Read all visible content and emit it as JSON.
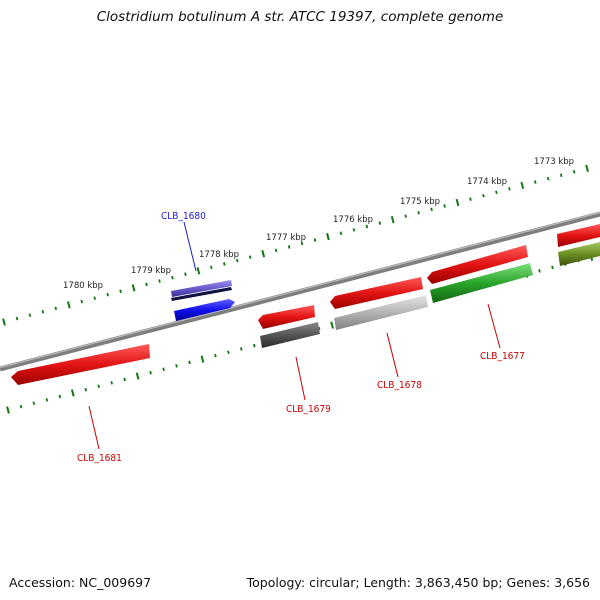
{
  "title": "Clostridium botulinum A str. ATCC 19397, complete genome",
  "footer": {
    "accession": "Accession: NC_009697",
    "summary": "Topology: circular; Length: 3,863,450 bp; Genes: 3,656"
  },
  "scale_labels": [
    "1773 kbp",
    "1774 kbp",
    "1775 kbp",
    "1776 kbp",
    "1777 kbp",
    "1778 kbp",
    "1779 kbp",
    "1780 kbp"
  ],
  "gene_labels": [
    {
      "text": "CLB_1680",
      "color": "#1a1acc"
    },
    {
      "text": "CLB_1681",
      "color": "#cc0000"
    },
    {
      "text": "CLB_1679",
      "color": "#cc0000"
    },
    {
      "text": "CLB_1678",
      "color": "#cc0000"
    },
    {
      "text": "CLB_1677",
      "color": "#cc0000"
    }
  ],
  "colors": {
    "backbone": "#808080",
    "tick": "#117711",
    "red_gene": "#e01818",
    "blue_gene": "#1010e0",
    "green_gene": "#22aa22",
    "olive_gene": "#6b8e23",
    "gray_dark": "#555555",
    "gray_light": "#b0b0b0",
    "purple": "#6a5acd"
  }
}
